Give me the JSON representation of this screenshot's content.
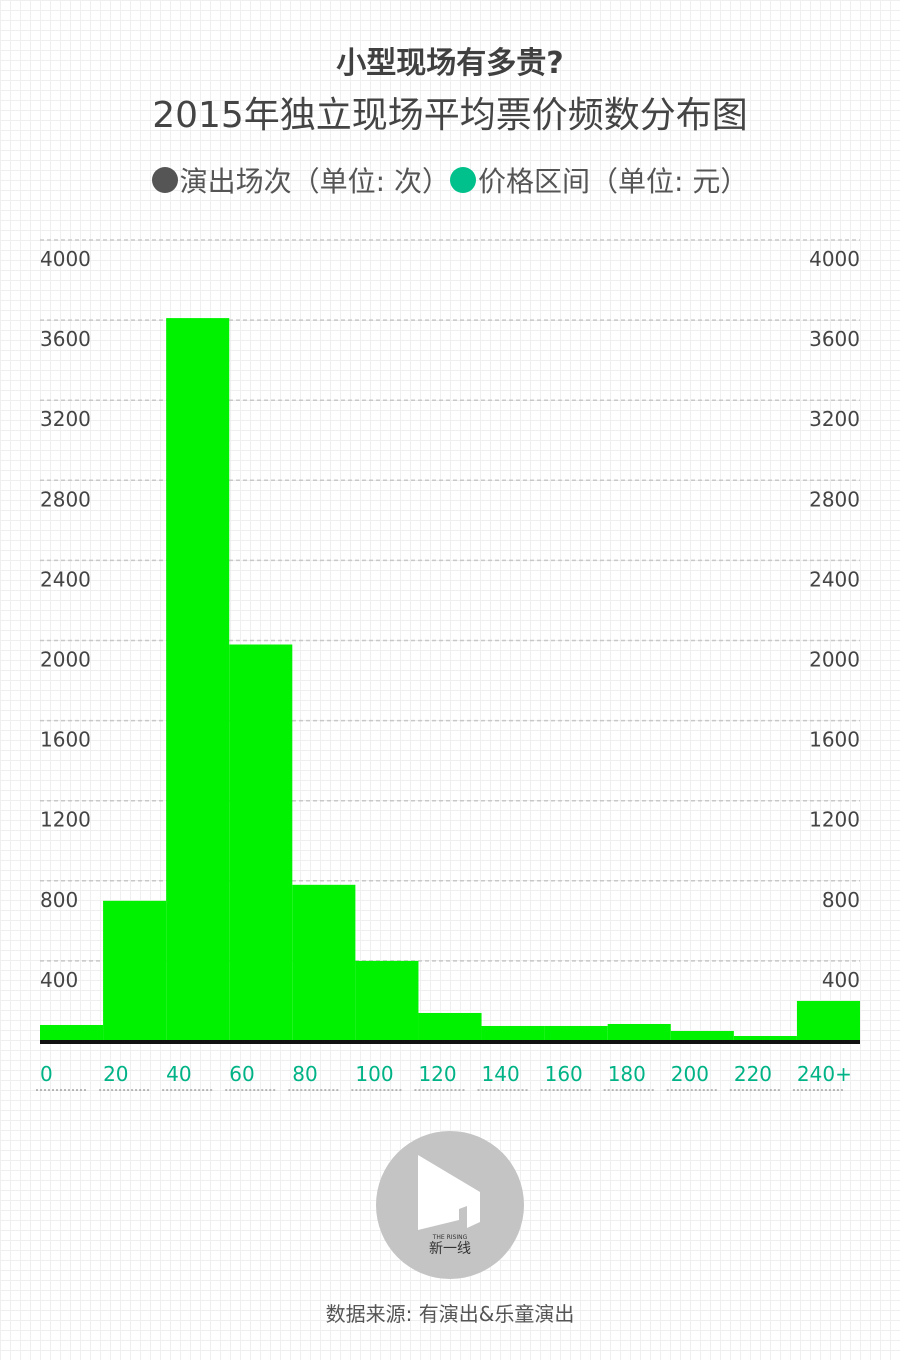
{
  "title": "小型现场有多贵?",
  "subtitle": "2015年独立现场平均票价频数分布图",
  "legend": [
    {
      "label": "演出场次（单位: 次）",
      "color": "#555555"
    },
    {
      "label": "价格区间（单位: 元）",
      "color": "#00c08b"
    }
  ],
  "source": "数据来源: 有演出&乐童演出",
  "logo": {
    "brand_small": "THE RISING",
    "brand": "新一线"
  },
  "colors": {
    "bar": "#00f200",
    "axis": "#111111",
    "x_tick": "#00b386",
    "y_tick": "#444444"
  },
  "chart_data": {
    "type": "bar",
    "title": "2015年独立现场平均票价频数分布图",
    "xlabel": "价格区间（单位: 元）",
    "ylabel": "演出场次（单位: 次）",
    "x_ticks": [
      "0",
      "20",
      "40",
      "60",
      "80",
      "100",
      "120",
      "140",
      "160",
      "180",
      "200",
      "220",
      "240+"
    ],
    "bins": [
      {
        "from": 0,
        "to": 20,
        "value": 80
      },
      {
        "from": 20,
        "to": 40,
        "value": 700
      },
      {
        "from": 40,
        "to": 60,
        "value": 3610
      },
      {
        "from": 60,
        "to": 80,
        "value": 1980
      },
      {
        "from": 80,
        "to": 100,
        "value": 780
      },
      {
        "from": 100,
        "to": 120,
        "value": 400
      },
      {
        "from": 120,
        "to": 140,
        "value": 140
      },
      {
        "from": 140,
        "to": 160,
        "value": 75
      },
      {
        "from": 160,
        "to": 180,
        "value": 75
      },
      {
        "from": 180,
        "to": 200,
        "value": 85
      },
      {
        "from": 200,
        "to": 220,
        "value": 50
      },
      {
        "from": 220,
        "to": 240,
        "value": 25
      },
      {
        "from": 240,
        "to": 260,
        "value": 200
      }
    ],
    "y_ticks": [
      400,
      800,
      1200,
      1600,
      2000,
      2400,
      2800,
      3200,
      3600,
      4000
    ],
    "ylim": [
      0,
      4000
    ],
    "xlim": [
      0,
      260
    ],
    "grid": true,
    "dual_y_axis": true
  }
}
